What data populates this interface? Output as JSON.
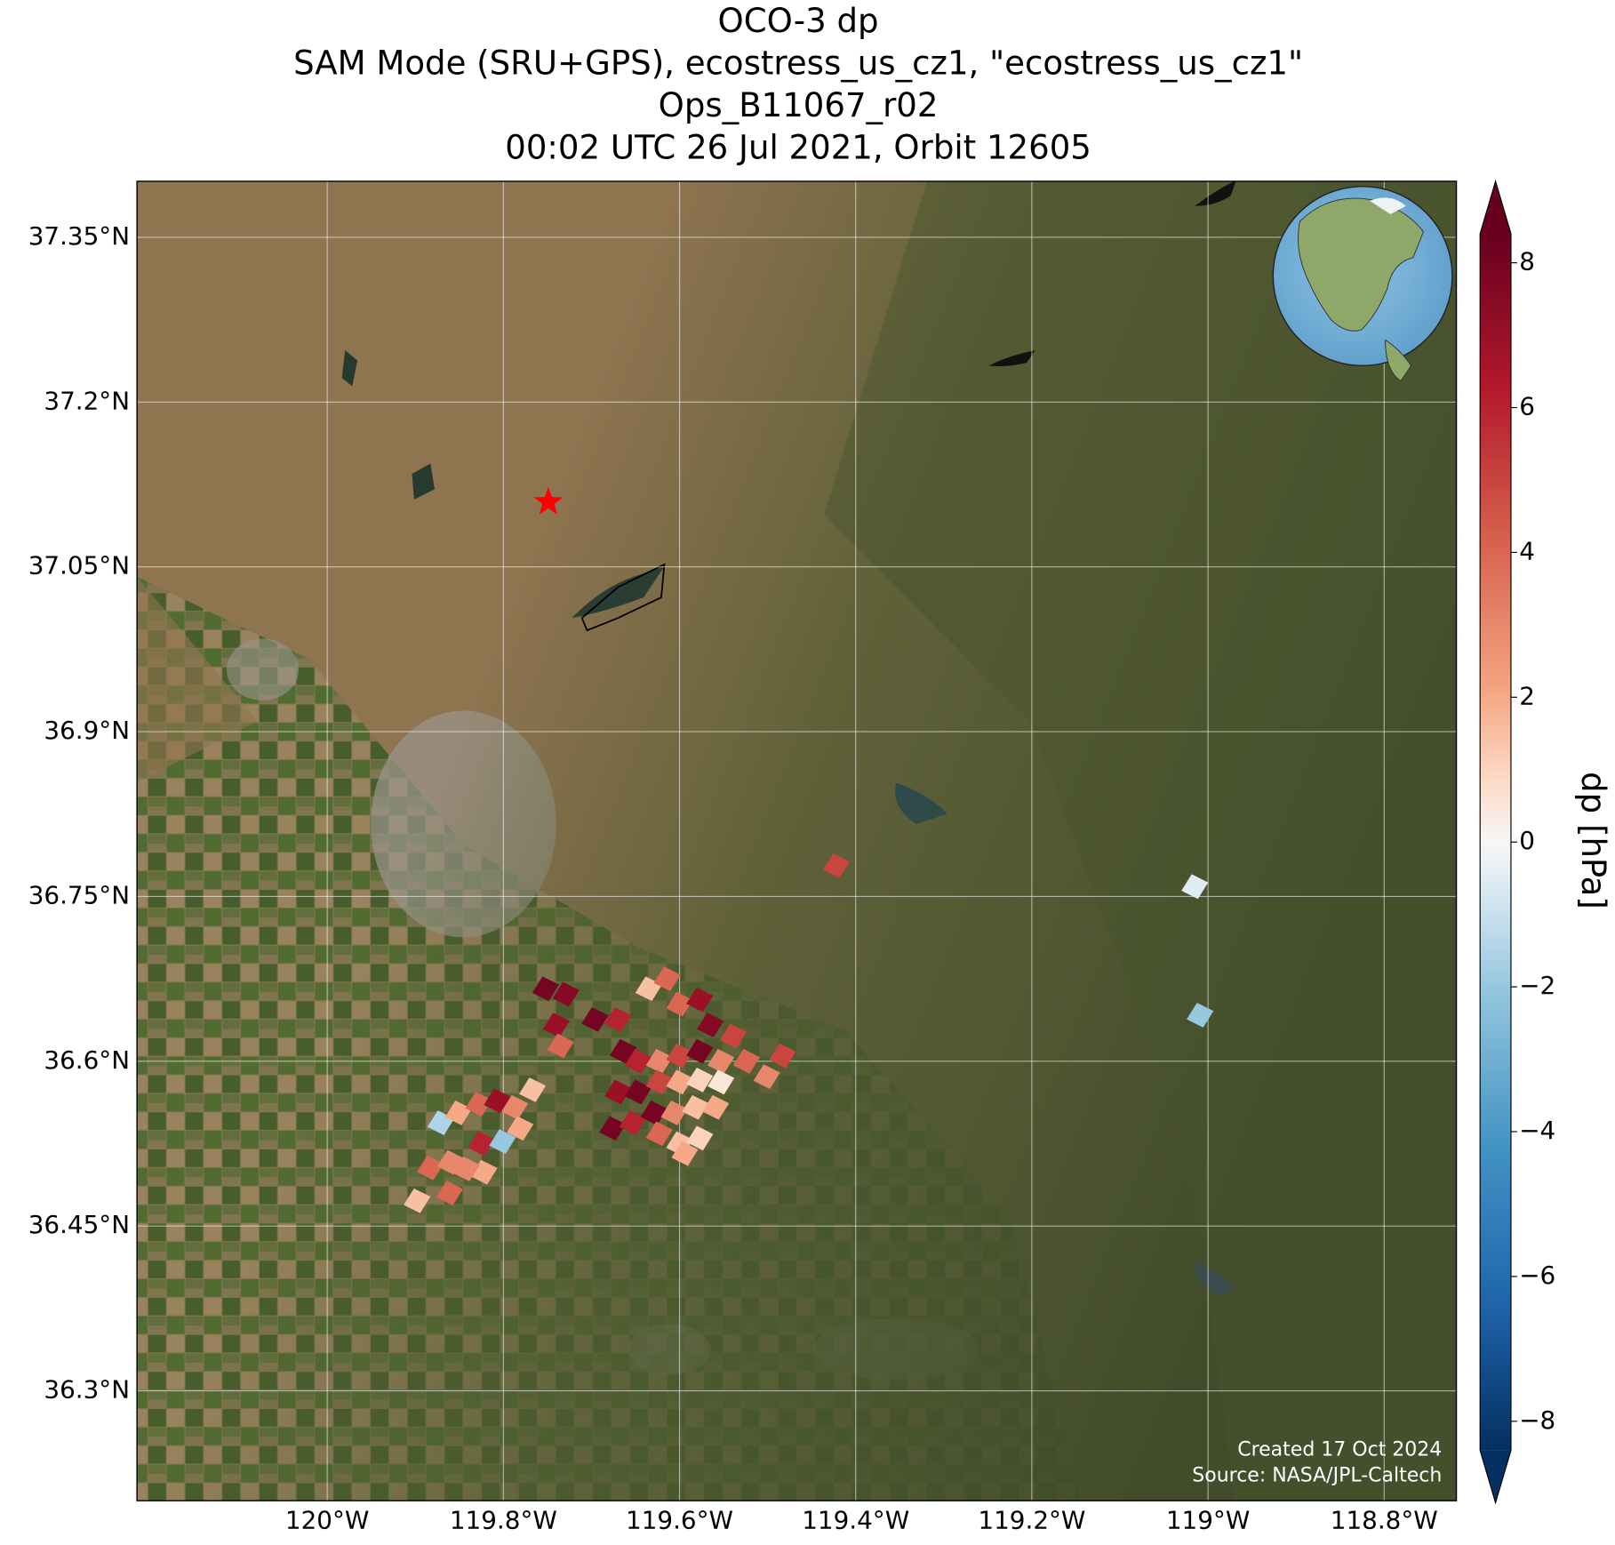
{
  "chart_data": {
    "type": "map",
    "title": [
      "OCO-3 dp",
      "SAM Mode (SRU+GPS), ecostress_us_cz1, \"ecostress_us_cz1\"",
      "Ops_B11067_r02",
      "00:02 UTC 26 Jul 2021, Orbit 12605"
    ],
    "xlim": [
      -120.216,
      -118.718
    ],
    "ylim": [
      36.2,
      37.401
    ],
    "xticks": [
      {
        "value": -120,
        "label": "120°W"
      },
      {
        "value": -119.8,
        "label": "119.8°W"
      },
      {
        "value": -119.6,
        "label": "119.6°W"
      },
      {
        "value": -119.4,
        "label": "119.4°W"
      },
      {
        "value": -119.2,
        "label": "119.2°W"
      },
      {
        "value": -119,
        "label": "119°W"
      },
      {
        "value": -118.8,
        "label": "118.8°W"
      }
    ],
    "yticks": [
      {
        "value": 37.35,
        "label": "37.35°N"
      },
      {
        "value": 37.2,
        "label": "37.2°N"
      },
      {
        "value": 37.05,
        "label": "37.05°N"
      },
      {
        "value": 36.9,
        "label": "36.9°N"
      },
      {
        "value": 36.75,
        "label": "36.75°N"
      },
      {
        "value": 36.6,
        "label": "36.6°N"
      },
      {
        "value": 36.45,
        "label": "36.45°N"
      },
      {
        "value": 36.3,
        "label": "36.3°N"
      }
    ],
    "grid": true,
    "x": [
      -119.898,
      -119.883,
      -119.86,
      -119.871,
      -119.851,
      -119.828,
      -119.807,
      -119.787,
      -119.767,
      -119.825,
      -119.801,
      -119.781,
      -119.822,
      -119.842,
      -119.861,
      -119.752,
      -119.729,
      -119.74,
      -119.735,
      -119.696,
      -119.67,
      -119.664,
      -119.635,
      -119.614,
      -119.6,
      -119.577,
      -119.565,
      -119.539,
      -119.647,
      -119.623,
      -119.6,
      -119.577,
      -119.553,
      -119.524,
      -119.501,
      -119.483,
      -119.67,
      -119.647,
      -119.623,
      -119.6,
      -119.577,
      -119.553,
      -119.676,
      -119.653,
      -119.629,
      -119.606,
      -119.582,
      -119.559,
      -119.623,
      -119.6,
      -119.577,
      -119.594,
      -119.422,
      -119.015,
      -119.009
    ],
    "y": [
      36.473,
      36.503,
      36.508,
      36.544,
      36.553,
      36.561,
      36.564,
      36.558,
      36.574,
      36.525,
      36.527,
      36.539,
      36.499,
      36.502,
      36.48,
      36.666,
      36.661,
      36.633,
      36.614,
      36.638,
      36.638,
      36.609,
      36.666,
      36.675,
      36.652,
      36.656,
      36.633,
      36.623,
      36.6,
      36.6,
      36.605,
      36.609,
      36.6,
      36.6,
      36.586,
      36.605,
      36.572,
      36.572,
      36.581,
      36.581,
      36.583,
      36.581,
      36.539,
      36.544,
      36.553,
      36.553,
      36.558,
      36.558,
      36.534,
      36.525,
      36.53,
      36.516,
      36.778,
      36.759,
      36.642
    ],
    "values": [
      1.5,
      4,
      3,
      -1.5,
      2,
      4,
      7,
      3,
      1.5,
      6,
      -2,
      2,
      2,
      3,
      4,
      8,
      7.5,
      7,
      4,
      8,
      6,
      8,
      1.5,
      4,
      4,
      7,
      7.5,
      5,
      6,
      3,
      5,
      8,
      3,
      4,
      3,
      5,
      7,
      8,
      5,
      2,
      1,
      0.5,
      8,
      6,
      8,
      3,
      1.5,
      2,
      4,
      1.5,
      1,
      2,
      5,
      -0.5,
      -2
    ],
    "colormap": "RdBu_r",
    "clim": [
      -8.4,
      8.4
    ],
    "cticks": [
      {
        "value": 8,
        "label": "8"
      },
      {
        "value": 6,
        "label": "6"
      },
      {
        "value": 4,
        "label": "4"
      },
      {
        "value": 2,
        "label": "2"
      },
      {
        "value": 0,
        "label": "0"
      },
      {
        "value": -2,
        "label": "−2"
      },
      {
        "value": -4,
        "label": "−4"
      },
      {
        "value": -6,
        "label": "−6"
      },
      {
        "value": -8,
        "label": "−8"
      }
    ],
    "colorbar_label": "dp [hPa]",
    "site": {
      "lon": -119.749,
      "lat": 37.109,
      "color": "#ff0000"
    },
    "annotations": [
      "Created 17 Oct 2024",
      "Source: NASA/JPL-Caltech"
    ]
  }
}
